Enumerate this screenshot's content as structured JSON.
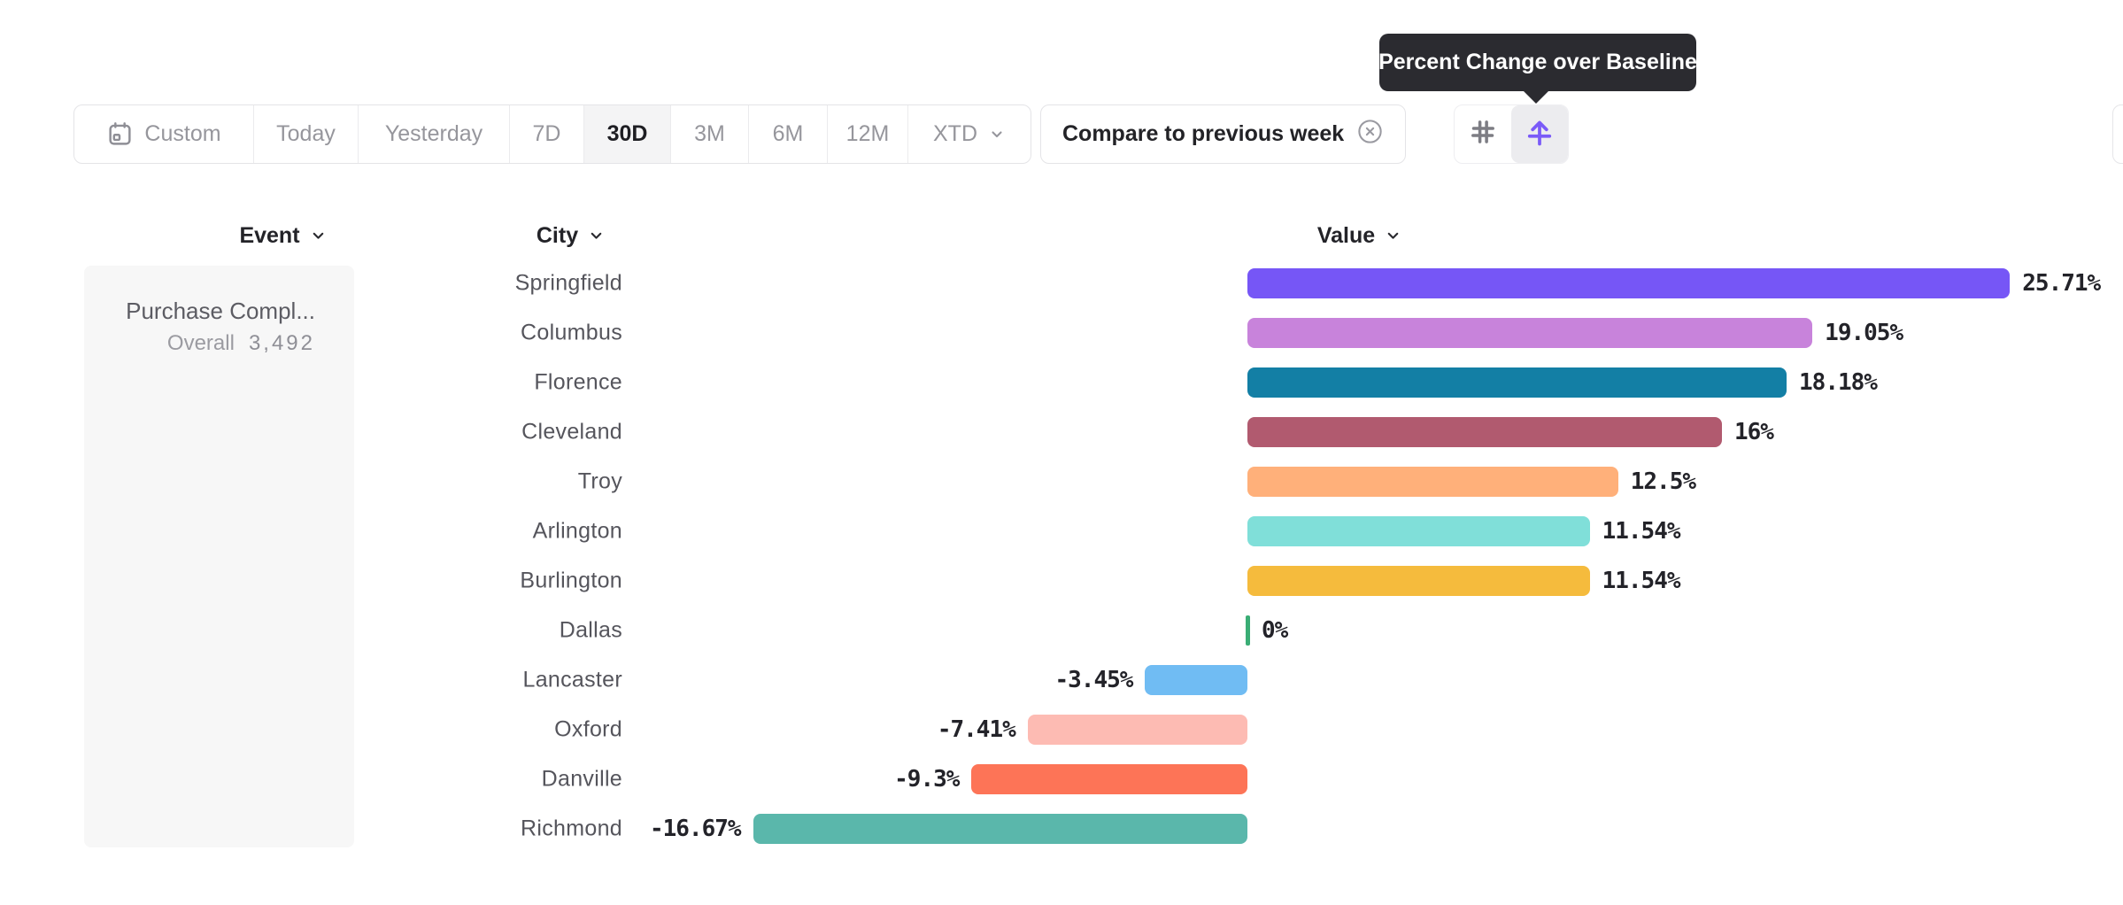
{
  "toolbar": {
    "date_ranges": [
      {
        "label": "Custom",
        "icon": "calendar-icon",
        "selected": false
      },
      {
        "label": "Today",
        "selected": false
      },
      {
        "label": "Yesterday",
        "selected": false
      },
      {
        "label": "7D",
        "selected": false
      },
      {
        "label": "30D",
        "selected": true
      },
      {
        "label": "3M",
        "selected": false
      },
      {
        "label": "6M",
        "selected": false
      },
      {
        "label": "12M",
        "selected": false
      },
      {
        "label": "XTD",
        "chevron": true,
        "selected": false
      }
    ],
    "compare_chip": {
      "label": "Compare to previous week",
      "close_icon": "circle-x-icon"
    },
    "view_toggle": {
      "options": [
        {
          "name": "numbers",
          "icon": "hash-icon",
          "selected": false
        },
        {
          "name": "percent-change",
          "icon": "percent-change-icon",
          "selected": true
        }
      ]
    }
  },
  "tooltip": {
    "text": "Percent Change over Baseline"
  },
  "columns": {
    "event": "Event",
    "city": "City",
    "value": "Value"
  },
  "event_card": {
    "name": "Purchase Compl...",
    "scope_label": "Overall",
    "total": "3,492"
  },
  "chart_data": {
    "type": "bar",
    "orientation": "horizontal",
    "unit": "%",
    "metric": "Percent Change over Baseline",
    "categories": [
      "Springfield",
      "Columbus",
      "Florence",
      "Cleveland",
      "Troy",
      "Arlington",
      "Burlington",
      "Dallas",
      "Lancaster",
      "Oxford",
      "Danville",
      "Richmond"
    ],
    "values": [
      25.71,
      19.05,
      18.18,
      16,
      12.5,
      11.54,
      11.54,
      0,
      -3.45,
      -7.41,
      -9.3,
      -16.67
    ],
    "value_labels": [
      "25.71%",
      "19.05%",
      "18.18%",
      "16%",
      "12.5%",
      "11.54%",
      "11.54%",
      "0%",
      "-3.45%",
      "-7.41%",
      "-9.3%",
      "-16.67%"
    ],
    "bar_colors": [
      "#7656F6",
      "#C883DB",
      "#137FA5",
      "#B15A6F",
      "#FFB07A",
      "#80DFD9",
      "#F5BB3D",
      "#3AAD75",
      "#70BCF3",
      "#FDBBB3",
      "#FD7457",
      "#5AB7AB"
    ],
    "baseline_value": 0,
    "grid": false,
    "legend": "none"
  },
  "colors": {
    "accent_purple": "#7a5af8",
    "tooltip_bg": "#2b2b30",
    "control_border": "#e4e4e7",
    "selected_range_bg": "#f4f4f5",
    "text_dark": "#232328",
    "text_gray": "#96969c",
    "city_text": "#55555c",
    "event_card_bg": "#f7f7f7",
    "zero_tick_green": "#3AAD75"
  }
}
